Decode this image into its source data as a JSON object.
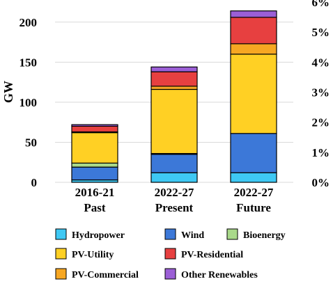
{
  "chart_data": {
    "type": "bar",
    "stacked": true,
    "categories": [
      {
        "line1": "2016-21",
        "line2": "Past"
      },
      {
        "line1": "2022-27",
        "line2": "Present"
      },
      {
        "line1": "2022-27",
        "line2": "Future"
      }
    ],
    "ylabel": "GW",
    "ylim": [
      0,
      225
    ],
    "y_ticks": [
      "0",
      "50",
      "100",
      "150",
      "200"
    ],
    "y_tick_values": [
      0,
      50,
      100,
      150,
      200
    ],
    "y2lim": [
      0,
      0.06
    ],
    "y2_ticks": [
      "0%",
      "1%",
      "2%",
      "3%",
      "4%",
      "5%",
      "6%"
    ],
    "y2_tick_values": [
      0,
      0.01,
      0.02,
      0.03,
      0.04,
      0.05,
      0.06
    ],
    "grid": true,
    "legend_position": "bottom",
    "series": [
      {
        "name": "Hydropower",
        "color": "#3ec8f4",
        "values": [
          3,
          12,
          12
        ]
      },
      {
        "name": "Wind",
        "color": "#3c78d8",
        "values": [
          16,
          23,
          49
        ]
      },
      {
        "name": "Bioenergy",
        "color": "#a9d98a",
        "values": [
          5,
          1,
          0
        ]
      },
      {
        "name": "PV-Utility",
        "color": "#ffd024",
        "values": [
          38,
          80,
          99
        ]
      },
      {
        "name": "PV-Commercial",
        "color": "#f7a722",
        "values": [
          1,
          4,
          13
        ]
      },
      {
        "name": "PV-Residential",
        "color": "#e74040",
        "values": [
          7,
          18,
          33
        ]
      },
      {
        "name": "Other Renewables",
        "color": "#9b5fd6",
        "values": [
          2,
          6,
          8
        ]
      }
    ],
    "legend_order": [
      [
        "Hydropower",
        "Wind",
        "Bioenergy"
      ],
      [
        "PV-Utility",
        "PV-Residential"
      ],
      [
        "PV-Commercial",
        "Other Renewables"
      ]
    ]
  }
}
